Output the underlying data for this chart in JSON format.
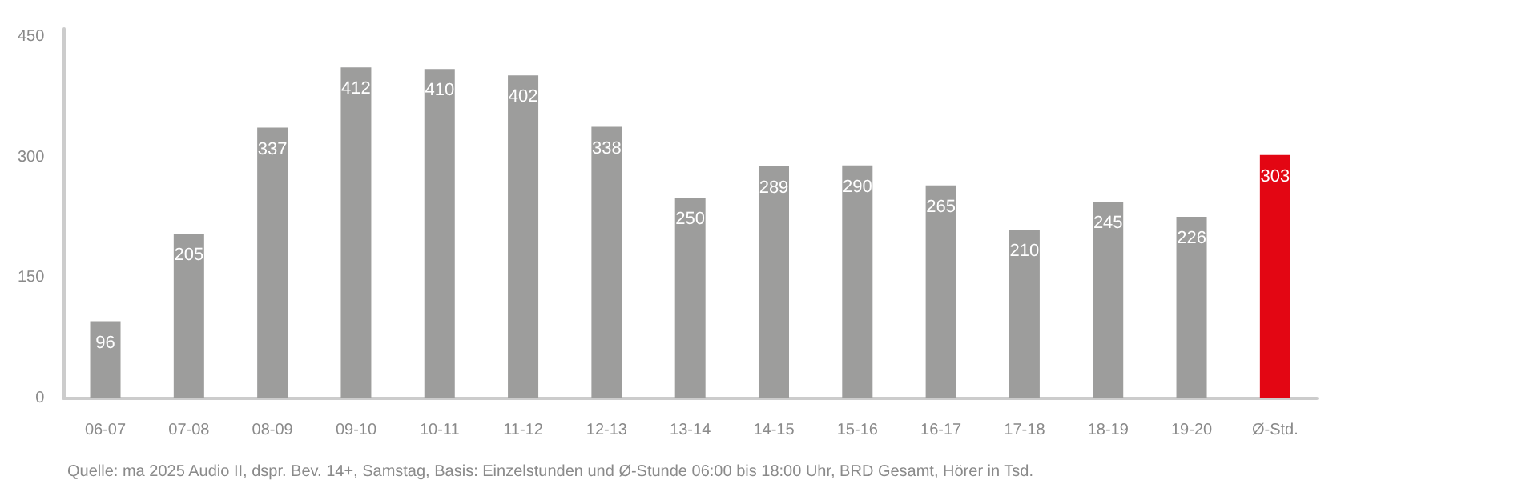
{
  "chart_data": {
    "type": "bar",
    "categories": [
      "06-07",
      "07-08",
      "08-09",
      "09-10",
      "10-11",
      "11-12",
      "12-13",
      "13-14",
      "14-15",
      "15-16",
      "16-17",
      "17-18",
      "18-19",
      "19-20",
      "Ø-Std."
    ],
    "values": [
      96,
      205,
      337,
      412,
      410,
      402,
      338,
      250,
      289,
      290,
      265,
      210,
      245,
      226,
      303
    ],
    "colors": [
      "#9d9d9c",
      "#9d9d9c",
      "#9d9d9c",
      "#9d9d9c",
      "#9d9d9c",
      "#9d9d9c",
      "#9d9d9c",
      "#9d9d9c",
      "#9d9d9c",
      "#9d9d9c",
      "#9d9d9c",
      "#9d9d9c",
      "#9d9d9c",
      "#9d9d9c",
      "#e30613"
    ],
    "ylim": [
      0,
      460
    ],
    "yticks": [
      0,
      150,
      300,
      450
    ],
    "data_labels": true,
    "annotations": [
      "Quelle: ma 2025 Audio II, dspr. Bev. 14+, Samstag, Basis: Einzelstunden und Ø-Stunde 06:00 bis 18:00 Uhr, BRD Gesamt, Hörer in Tsd."
    ]
  }
}
